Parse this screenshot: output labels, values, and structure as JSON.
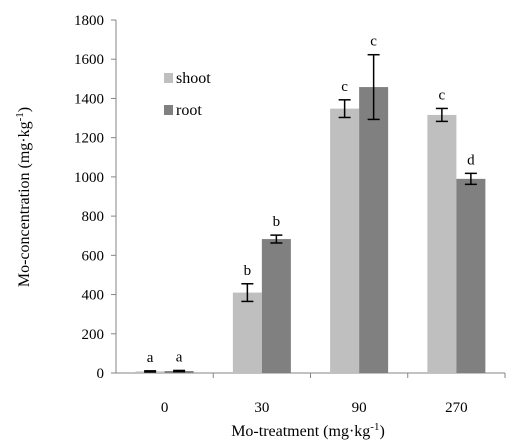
{
  "chart_data": {
    "type": "bar",
    "categories": [
      "0",
      "30",
      "90",
      "270"
    ],
    "series": [
      {
        "name": "shoot",
        "color": "#bfbfbf",
        "values": [
          8,
          410,
          1348,
          1316
        ],
        "errors": [
          3,
          45,
          45,
          33
        ],
        "labels": [
          "a",
          "b",
          "c",
          "c"
        ]
      },
      {
        "name": "root",
        "color": "#808080",
        "values": [
          10,
          683,
          1458,
          990
        ],
        "errors": [
          3,
          20,
          165,
          28
        ],
        "labels": [
          "a",
          "b",
          "c",
          "d"
        ]
      }
    ],
    "ylim": [
      0,
      1800
    ],
    "yticks": [
      0,
      200,
      400,
      600,
      800,
      1000,
      1200,
      1400,
      1600,
      1800
    ],
    "ylabel_parts": [
      "Mo-concentration (mg·kg",
      "-1",
      ")"
    ],
    "xlabel_parts": [
      "Mo-treatment (mg·kg",
      "-1",
      ")"
    ],
    "grid": false,
    "legend": "top-left"
  }
}
